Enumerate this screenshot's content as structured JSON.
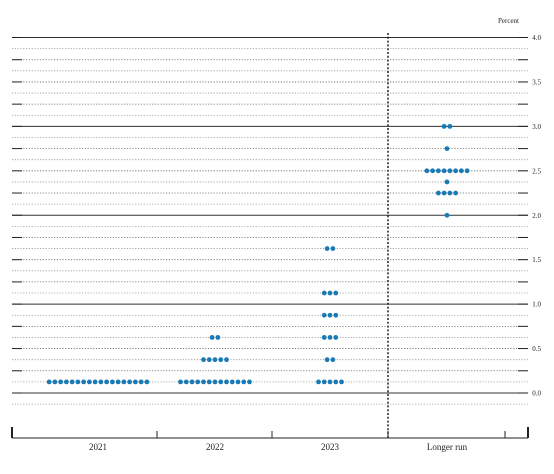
{
  "chart_data": {
    "type": "scatter",
    "unit": "Percent",
    "categories": [
      "2021",
      "2022",
      "2023",
      "Longer run"
    ],
    "yticks": [
      "0.0",
      "0.5",
      "1.0",
      "1.5",
      "2.0",
      "2.5",
      "3.0",
      "3.5",
      "4.0"
    ],
    "ylim": [
      -0.125,
      4.0
    ],
    "grid": true,
    "separator_after_category": "2023",
    "dot_color": "#1a7ab5",
    "series": [
      {
        "category": "2021",
        "points": [
          {
            "y": 0.125,
            "count": 18
          }
        ]
      },
      {
        "category": "2022",
        "points": [
          {
            "y": 0.125,
            "count": 13
          },
          {
            "y": 0.375,
            "count": 5
          },
          {
            "y": 0.625,
            "count": 2
          }
        ]
      },
      {
        "category": "2023",
        "points": [
          {
            "y": 0.125,
            "count": 5
          },
          {
            "y": 0.375,
            "count": 2
          },
          {
            "y": 0.625,
            "count": 3
          },
          {
            "y": 0.875,
            "count": 3
          },
          {
            "y": 1.125,
            "count": 3
          },
          {
            "y": 1.625,
            "count": 2
          }
        ]
      },
      {
        "category": "Longer run",
        "points": [
          {
            "y": 2.0,
            "count": 1
          },
          {
            "y": 2.25,
            "count": 4
          },
          {
            "y": 2.375,
            "count": 1
          },
          {
            "y": 2.5,
            "count": 8
          },
          {
            "y": 2.75,
            "count": 1
          },
          {
            "y": 3.0,
            "count": 2
          }
        ]
      }
    ]
  }
}
